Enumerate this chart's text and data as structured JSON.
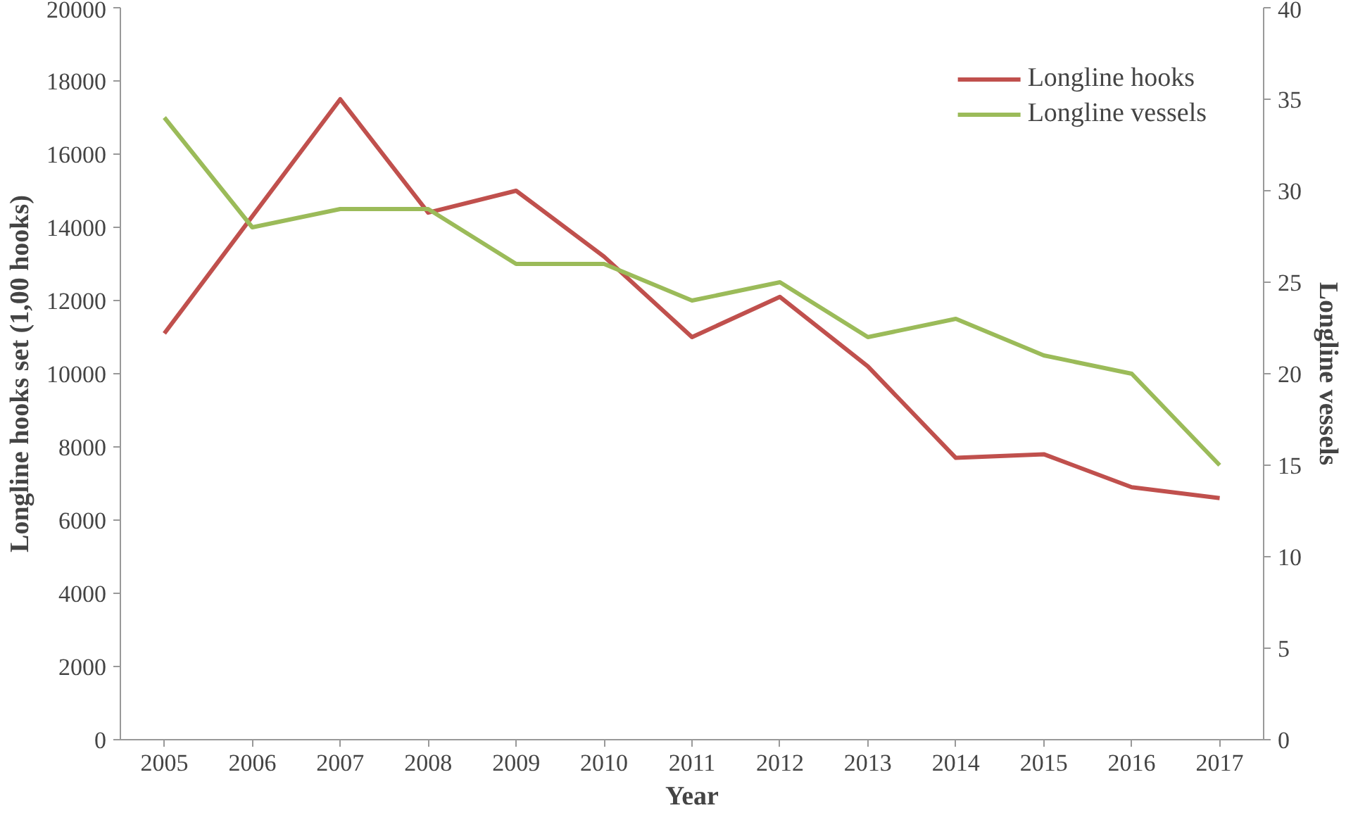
{
  "chart_data": {
    "type": "line",
    "xlabel": "Year",
    "ylabel": "Longline hooks set (1,00 hooks)",
    "y2label": "Longline vessels",
    "categories": [
      "2005",
      "2006",
      "2007",
      "2008",
      "2009",
      "2010",
      "2011",
      "2012",
      "2013",
      "2014",
      "2015",
      "2016",
      "2017"
    ],
    "series": [
      {
        "name": "Longline hooks",
        "color": "#c0504d",
        "values": [
          11100,
          14300,
          17500,
          14400,
          15000,
          13200,
          11000,
          12100,
          10200,
          7700,
          7800,
          6900,
          6600
        ]
      },
      {
        "name": "Longline vessels",
        "color": "#9bbb59",
        "axis": "y2",
        "values": [
          34,
          28,
          29,
          29,
          26,
          26,
          24,
          25,
          22,
          23,
          21,
          20,
          15
        ]
      }
    ],
    "ylim": [
      0,
      20000
    ],
    "yticks": [
      0,
      2000,
      4000,
      6000,
      8000,
      10000,
      12000,
      14000,
      16000,
      18000,
      20000
    ],
    "y2lim": [
      0,
      40
    ],
    "y2ticks": [
      0,
      5,
      10,
      15,
      20,
      25,
      30,
      35,
      40
    ],
    "grid": false,
    "legend": "top right",
    "marker": "none",
    "line_style": "solid"
  }
}
